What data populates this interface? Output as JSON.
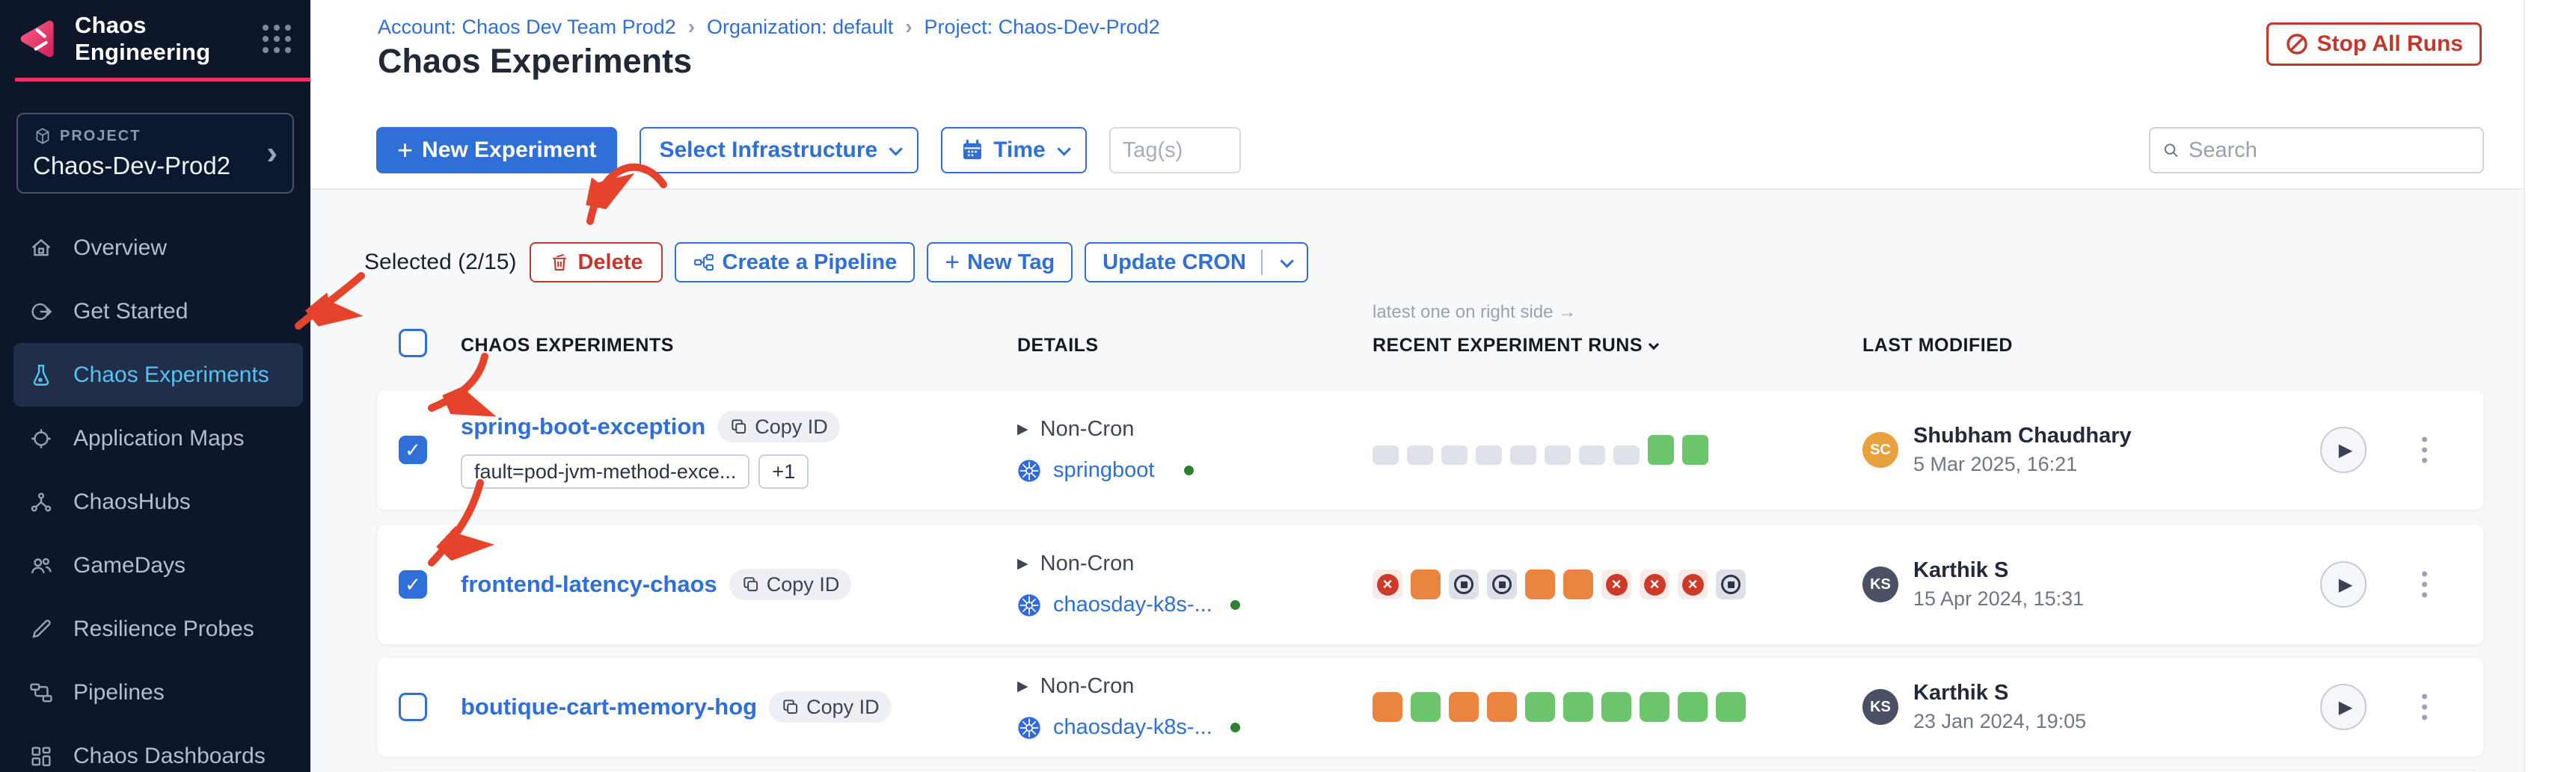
{
  "app": {
    "title": "Chaos Engineering"
  },
  "sidebar": {
    "project_label": "PROJECT",
    "project_name": "Chaos-Dev-Prod2",
    "chevron": "›",
    "items": [
      {
        "label": "Overview"
      },
      {
        "label": "Get Started"
      },
      {
        "label": "Chaos Experiments",
        "active": true
      },
      {
        "label": "Application Maps"
      },
      {
        "label": "ChaosHubs"
      },
      {
        "label": "GameDays"
      },
      {
        "label": "Resilience Probes"
      },
      {
        "label": "Pipelines"
      },
      {
        "label": "Chaos Dashboards"
      }
    ]
  },
  "breadcrumb": {
    "separator": "›",
    "items": [
      "Account: Chaos Dev Team Prod2",
      "Organization: default",
      "Project: Chaos-Dev-Prod2"
    ]
  },
  "page": {
    "title": "Chaos Experiments",
    "stop_all_runs": "Stop All Runs"
  },
  "toolbar": {
    "new_experiment": "New Experiment",
    "plus": "+",
    "select_infrastructure": "Select Infrastructure",
    "time": "Time",
    "tags_placeholder": "Tag(s)",
    "search_placeholder": "Search"
  },
  "selection": {
    "label": "Selected (2/15)",
    "delete": "Delete",
    "create_pipeline": "Create a Pipeline",
    "new_tag": "New Tag",
    "update_cron": "Update CRON"
  },
  "table": {
    "note": "latest one on right side →",
    "col_experiments": "CHAOS EXPERIMENTS",
    "col_details": "DETAILS",
    "col_runs": "RECENT EXPERIMENT RUNS",
    "col_modified": "LAST MODIFIED",
    "rows": [
      {
        "name": "spring-boot-exception",
        "copy_id": "Copy ID",
        "checked": true,
        "tag": "fault=pod-jvm-method-exce...",
        "extra_tag": "+1",
        "cron": "Non-Cron",
        "infra": "springboot",
        "runs": [
          "pending",
          "pending",
          "pending",
          "pending",
          "pending",
          "pending",
          "pending",
          "pending",
          "success-bar",
          "success-bar"
        ],
        "initials": "SC",
        "avatar_color": "#e8a13d",
        "modified_by": "Shubham Chaudhary",
        "date": "5 Mar 2025, 16:21"
      },
      {
        "name": "frontend-latency-chaos",
        "copy_id": "Copy ID",
        "checked": true,
        "cron": "Non-Cron",
        "infra": "chaosday-k8s-...",
        "runs": [
          "failed",
          "running",
          "stopped",
          "stopped",
          "running",
          "running",
          "failed",
          "failed",
          "failed",
          "stopped"
        ],
        "initials": "KS",
        "avatar_color": "#4a5164",
        "modified_by": "Karthik S",
        "date": "15 Apr 2024, 15:31"
      },
      {
        "name": "boutique-cart-memory-hog",
        "copy_id": "Copy ID",
        "checked": false,
        "cron": "Non-Cron",
        "infra": "chaosday-k8s-...",
        "runs": [
          "running",
          "success",
          "running",
          "running",
          "success",
          "success",
          "success",
          "success",
          "success",
          "success"
        ],
        "initials": "KS",
        "avatar_color": "#4a5164",
        "modified_by": "Karthik S",
        "date": "23 Jan 2024, 19:05"
      }
    ]
  },
  "icons": {
    "check": "✓",
    "cross": "×",
    "play": "▶"
  },
  "colors": {
    "primary_blue": "#2e6fd8",
    "danger_red": "#c4372b",
    "accent_pink": "#ee2f68",
    "run_green": "#6cc56a",
    "run_orange": "#eb8440",
    "run_gray": "#dfe1ea",
    "fail_red": "#ce3a29",
    "status_green_dot": "#2f8132",
    "annotation_red": "#e5432c",
    "active_item_blue": "#57c1f1"
  },
  "annotations": {
    "color": "#e5432c",
    "arrows": [
      "points-to-delete-button",
      "points-to-sidebar-chaos-experiments",
      "points-to-row-1-checkbox",
      "points-to-row-2-checkbox"
    ]
  }
}
